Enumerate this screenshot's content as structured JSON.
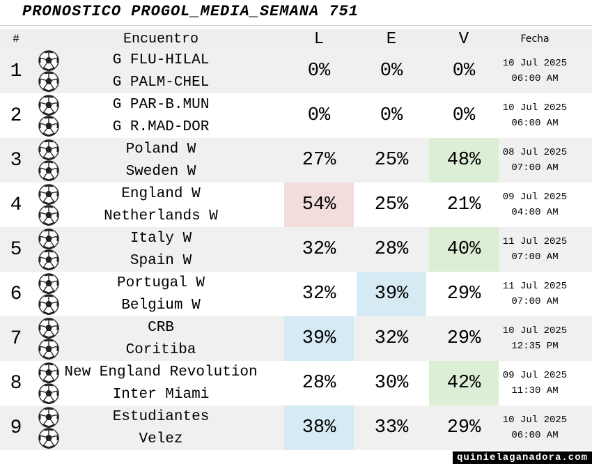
{
  "header": {
    "title": "PRONOSTICO PROGOL_MEDIA_SEMANA 751"
  },
  "table": {
    "columns": {
      "number": "#",
      "match": "Encuentro",
      "L": "L",
      "E": "E",
      "V": "V",
      "date": "Fecha"
    },
    "rows": [
      {
        "number": "1",
        "home": "G FLU-HILAL",
        "away": "G PALM-CHEL",
        "L": "0%",
        "E": "0%",
        "V": "0%",
        "date": "10 Jul 2025",
        "time": "06:00 AM"
      },
      {
        "number": "2",
        "home": "G PAR-B.MUN",
        "away": "G R.MAD-DOR",
        "L": "0%",
        "E": "0%",
        "V": "0%",
        "date": "10 Jul 2025",
        "time": "06:00 AM"
      },
      {
        "number": "3",
        "home": "Poland W",
        "away": "Sweden W",
        "L": "27%",
        "E": "25%",
        "V": "48%",
        "date": "08 Jul 2025",
        "time": "07:00 AM",
        "highlight": {
          "column": "V",
          "color": "#dcefd6"
        }
      },
      {
        "number": "4",
        "home": "England W",
        "away": "Netherlands W",
        "L": "54%",
        "E": "25%",
        "V": "21%",
        "date": "09 Jul 2025",
        "time": "04:00 AM",
        "highlight": {
          "column": "L",
          "color": "#f2dcdc"
        }
      },
      {
        "number": "5",
        "home": "Italy W",
        "away": "Spain W",
        "L": "32%",
        "E": "28%",
        "V": "40%",
        "date": "11 Jul 2025",
        "time": "07:00 AM",
        "highlight": {
          "column": "V",
          "color": "#dcefd6"
        }
      },
      {
        "number": "6",
        "home": "Portugal W",
        "away": "Belgium W",
        "L": "32%",
        "E": "39%",
        "V": "29%",
        "date": "11 Jul 2025",
        "time": "07:00 AM",
        "highlight": {
          "column": "E",
          "color": "#d6eaf4"
        }
      },
      {
        "number": "7",
        "home": "CRB",
        "away": "Coritiba",
        "L": "39%",
        "E": "32%",
        "V": "29%",
        "date": "10 Jul 2025",
        "time": "12:35 PM",
        "highlight": {
          "column": "L",
          "color": "#d6eaf4"
        }
      },
      {
        "number": "8",
        "home": "New England Revolution",
        "away": "Inter Miami",
        "L": "28%",
        "E": "30%",
        "V": "42%",
        "date": "09 Jul 2025",
        "time": "11:30 AM",
        "highlight": {
          "column": "V",
          "color": "#dcefd6"
        }
      },
      {
        "number": "9",
        "home": "Estudiantes",
        "away": "Velez",
        "L": "38%",
        "E": "33%",
        "V": "29%",
        "date": "10 Jul 2025",
        "time": "06:00 AM",
        "highlight": {
          "column": "L",
          "color": "#d6eaf4"
        }
      }
    ]
  },
  "footer": {
    "site": "quinielaganadora.com"
  }
}
